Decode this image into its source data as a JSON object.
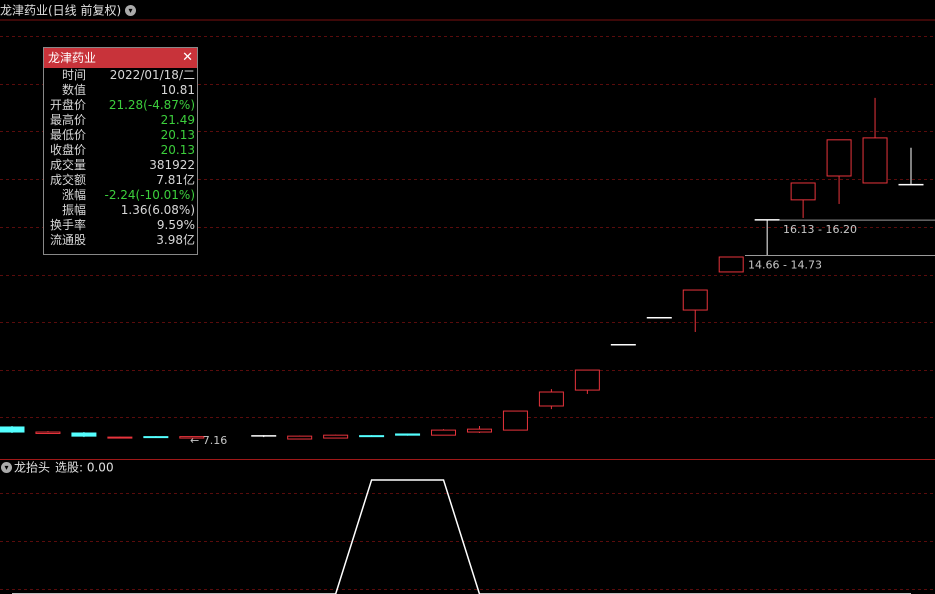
{
  "header": {
    "title": "龙津药业(日线 前复权)"
  },
  "info_panel": {
    "title": "龙津药业",
    "rows": [
      {
        "label": "时间",
        "value": "2022/01/18/二",
        "color": "#d8d8d8"
      },
      {
        "label": "数值",
        "value": "10.81",
        "color": "#d8d8d8"
      },
      {
        "label": "开盘价",
        "value": "21.28(-4.87%)",
        "color": "#3ccf3c"
      },
      {
        "label": "最高价",
        "value": "21.49",
        "color": "#3ccf3c"
      },
      {
        "label": "最低价",
        "value": "20.13",
        "color": "#3ccf3c"
      },
      {
        "label": "收盘价",
        "value": "20.13",
        "color": "#3ccf3c"
      },
      {
        "label": "成交量",
        "value": "381922",
        "color": "#d8d8d8"
      },
      {
        "label": "成交额",
        "value": "7.81亿",
        "color": "#d8d8d8"
      },
      {
        "label": "涨幅",
        "value": "-2.24(-10.01%)",
        "color": "#3ccf3c"
      },
      {
        "label": "振幅",
        "value": "1.36(6.08%)",
        "color": "#d8d8d8"
      },
      {
        "label": "换手率",
        "value": "9.59%",
        "color": "#d8d8d8"
      },
      {
        "label": "流通股",
        "value": "3.98亿",
        "color": "#d8d8d8"
      }
    ]
  },
  "chart_data": [
    {
      "type": "candlestick",
      "categories": [
        null,
        null,
        null,
        null,
        null,
        null,
        null,
        null,
        null,
        null,
        null,
        null,
        null,
        null,
        null,
        null,
        null,
        null,
        null,
        null,
        null,
        null,
        null,
        null,
        null,
        null
      ],
      "open": [
        7.62,
        7.35,
        7.37,
        7.18,
        7.22,
        7.16,
        null,
        7.24,
        7.12,
        7.16,
        7.26,
        7.33,
        7.28,
        7.41,
        7.49,
        8.49,
        9.15,
        11.02,
        12.14,
        12.47,
        14.05,
        16.2,
        17.04,
        18.03,
        17.74,
        17.66
      ],
      "high": [
        7.66,
        7.45,
        7.41,
        7.22,
        7.24,
        7.24,
        null,
        7.28,
        7.26,
        7.3,
        7.28,
        7.35,
        7.53,
        7.66,
        8.28,
        9.19,
        9.98,
        11.02,
        12.14,
        13.3,
        14.67,
        16.2,
        17.74,
        19.53,
        21.27,
        19.2
      ],
      "low": [
        7.37,
        7.33,
        7.2,
        7.16,
        7.18,
        7.16,
        null,
        7.2,
        7.12,
        7.16,
        7.22,
        7.26,
        7.28,
        7.37,
        7.49,
        8.36,
        8.99,
        11.02,
        12.14,
        11.56,
        14.05,
        14.75,
        16.29,
        16.87,
        17.74,
        17.66
      ],
      "close": [
        7.41,
        7.41,
        7.24,
        7.2,
        7.2,
        7.22,
        null,
        7.24,
        7.24,
        7.28,
        7.24,
        7.28,
        7.49,
        7.53,
        8.28,
        9.07,
        9.98,
        11.02,
        12.14,
        13.3,
        14.67,
        16.2,
        17.74,
        19.53,
        19.61,
        17.66
      ],
      "ylim": [
        6.25,
        24.5
      ],
      "up_color": "#e8343c",
      "down_color": "#54ffff",
      "flat_color": "#ffffff",
      "annotations": [
        {
          "label": "← 7.16",
          "value": 7.16
        },
        {
          "label": "16.13 - 16.20",
          "value": 16.2
        },
        {
          "label": "14.66 - 14.73",
          "value": 14.73
        }
      ]
    },
    {
      "type": "line",
      "title": "龙抬头",
      "subtitle": "选股: 0.00",
      "values": [
        0,
        0,
        0,
        0,
        0,
        0,
        0,
        0,
        0,
        0,
        1,
        1,
        1,
        0,
        0,
        0,
        0,
        0,
        0,
        0,
        0,
        0,
        0,
        0,
        0,
        0
      ],
      "ylim": [
        0,
        1.175
      ],
      "color": "#ffffff"
    }
  ]
}
